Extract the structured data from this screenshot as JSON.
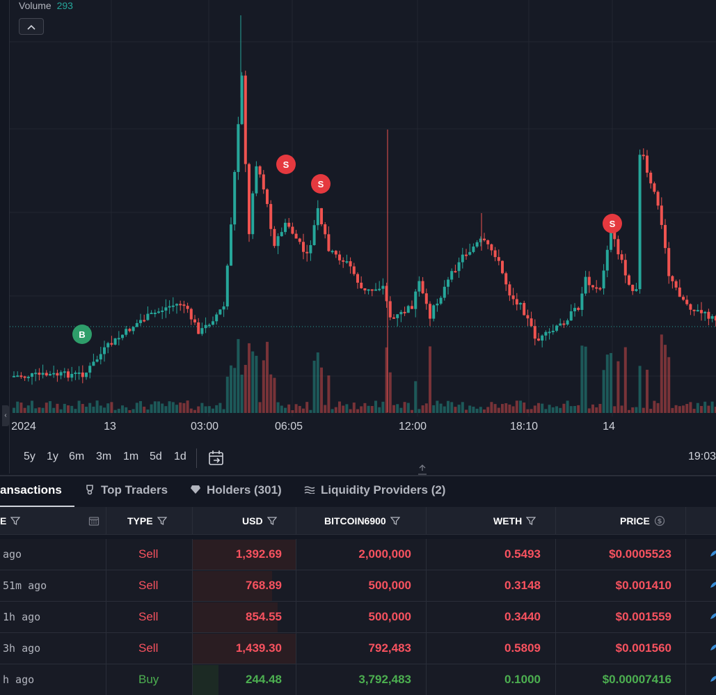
{
  "volume_legend": {
    "label": "Volume",
    "value": "293"
  },
  "legend_toggle": "^",
  "chart_data": {
    "type": "candlestick",
    "time_ticks": [
      "2024",
      "13",
      "03:00",
      "06:05",
      "12:00",
      "18:10",
      "14"
    ],
    "markers": [
      {
        "label": "B",
        "side": "buy"
      },
      {
        "label": "S",
        "side": "sell"
      },
      {
        "label": "S",
        "side": "sell"
      },
      {
        "label": "S",
        "side": "sell"
      }
    ],
    "colors": {
      "up": "#26a69a",
      "down": "#ef5350",
      "background": "#161a25",
      "grid": "#222631",
      "buy_marker": "#2e9e6a",
      "sell_marker": "#e5393f"
    }
  },
  "range_buttons": [
    "5y",
    "1y",
    "6m",
    "3m",
    "1m",
    "5d",
    "1d"
  ],
  "clock": "19:03",
  "tabs": [
    {
      "label": "ansactions",
      "icon": ""
    },
    {
      "label": "Top Traders",
      "icon": "trophy-icon"
    },
    {
      "label": "Holders (301)",
      "icon": "diamond-icon"
    },
    {
      "label": "Liquidity Providers (2)",
      "icon": "waves-icon"
    }
  ],
  "table": {
    "headers": [
      "E",
      "TYPE",
      "USD",
      "BITCOIN6900",
      "WETH",
      "PRICE"
    ],
    "rows": [
      {
        "time": " ago",
        "type": "Sell",
        "usd": "1,392.69",
        "token": "2,000,000",
        "weth": "0.5493",
        "price": "$0.0005523",
        "usd_fill": 1.0
      },
      {
        "time": " 51m ago",
        "type": "Sell",
        "usd": "768.89",
        "token": "500,000",
        "weth": "0.3148",
        "price": "$0.001410",
        "usd_fill": 0.55
      },
      {
        "time": "1h ago",
        "type": "Sell",
        "usd": "854.55",
        "token": "500,000",
        "weth": "0.3440",
        "price": "$0.001559",
        "usd_fill": 0.61
      },
      {
        "time": "3h ago",
        "type": "Sell",
        "usd": "1,439.30",
        "token": "792,483",
        "weth": "0.5809",
        "price": "$0.001560",
        "usd_fill": 1.0
      },
      {
        "time": "h ago",
        "type": "Buy",
        "usd": "244.48",
        "token": "3,792,483",
        "weth": "0.1000",
        "price": "$0.00007416",
        "usd_fill": 0.25
      }
    ]
  }
}
